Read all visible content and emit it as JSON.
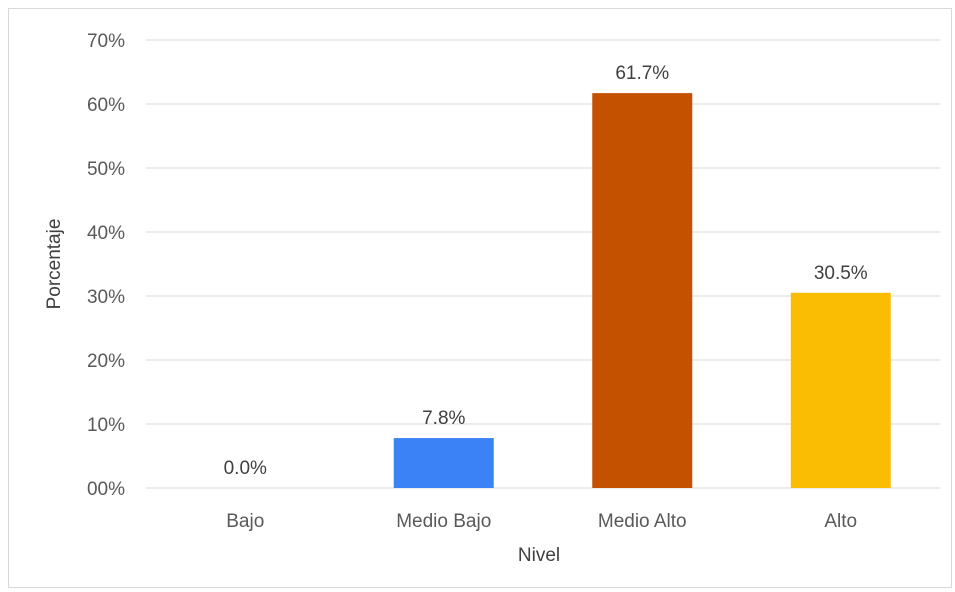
{
  "chart_data": {
    "type": "bar",
    "categories": [
      "Bajo",
      "Medio Bajo",
      "Medio Alto",
      "Alto"
    ],
    "values": [
      0.0,
      7.8,
      61.7,
      30.5
    ],
    "data_labels": [
      "0.0%",
      "7.8%",
      "61.7%",
      "30.5%"
    ],
    "bar_colors": [
      "#4285f4",
      "#3b82f6",
      "#c45100",
      "#fbbc04"
    ],
    "xlabel": "Nivel",
    "ylabel": "Porcentaje",
    "ylim": [
      0,
      70
    ],
    "yticks": [
      0,
      10,
      20,
      30,
      40,
      50,
      60,
      70
    ],
    "ytick_labels": [
      "00%",
      "10%",
      "20%",
      "30%",
      "40%",
      "50%",
      "60%",
      "70%"
    ],
    "grid": true,
    "legend": "none",
    "gridline_color": "#d9d9d9"
  }
}
